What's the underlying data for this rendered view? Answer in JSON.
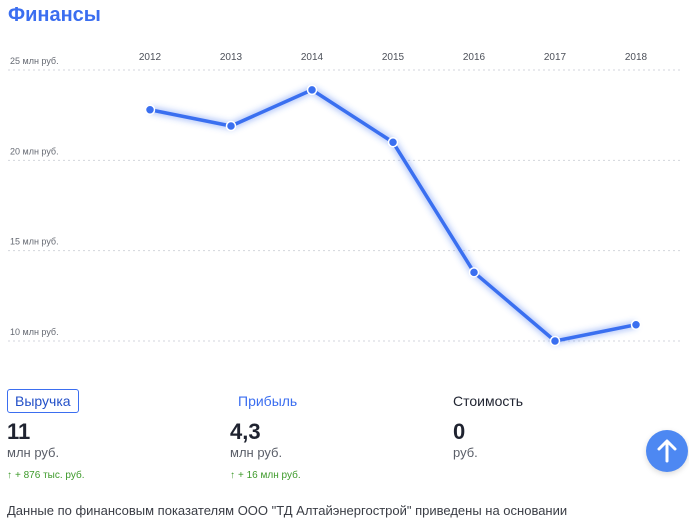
{
  "title": "Финансы",
  "chart_data": {
    "type": "line",
    "x": [
      "2012",
      "2013",
      "2014",
      "2015",
      "2016",
      "2017",
      "2018"
    ],
    "series": [
      {
        "values": [
          22.8,
          21.9,
          23.9,
          21.0,
          13.8,
          10.0,
          10.9
        ]
      }
    ],
    "yticks": [
      {
        "value": 25,
        "label": "25 млн руб."
      },
      {
        "value": 20,
        "label": "20 млн руб."
      },
      {
        "value": 15,
        "label": "15 млн руб."
      },
      {
        "value": 10,
        "label": "10 млн руб."
      }
    ],
    "ylim": [
      10,
      25
    ],
    "grid": true,
    "color": "#3a6ff0"
  },
  "metrics": [
    {
      "label": "Выручка",
      "value": "11",
      "unit": "млн руб.",
      "delta_arrow": "↑",
      "delta": "+ 876 тыс. руб."
    },
    {
      "label": "Прибыль",
      "value": "4,3",
      "unit": "млн руб.",
      "delta_arrow": "↑",
      "delta": "+ 16 млн руб."
    },
    {
      "label": "Стоимость",
      "value": "0",
      "unit": "руб."
    }
  ],
  "scroll_up_icon": "arrow-up-icon",
  "footer_text": "Данные по финансовым показателям ООО \"ТД Алтайэнергострой\" приведены на основании"
}
